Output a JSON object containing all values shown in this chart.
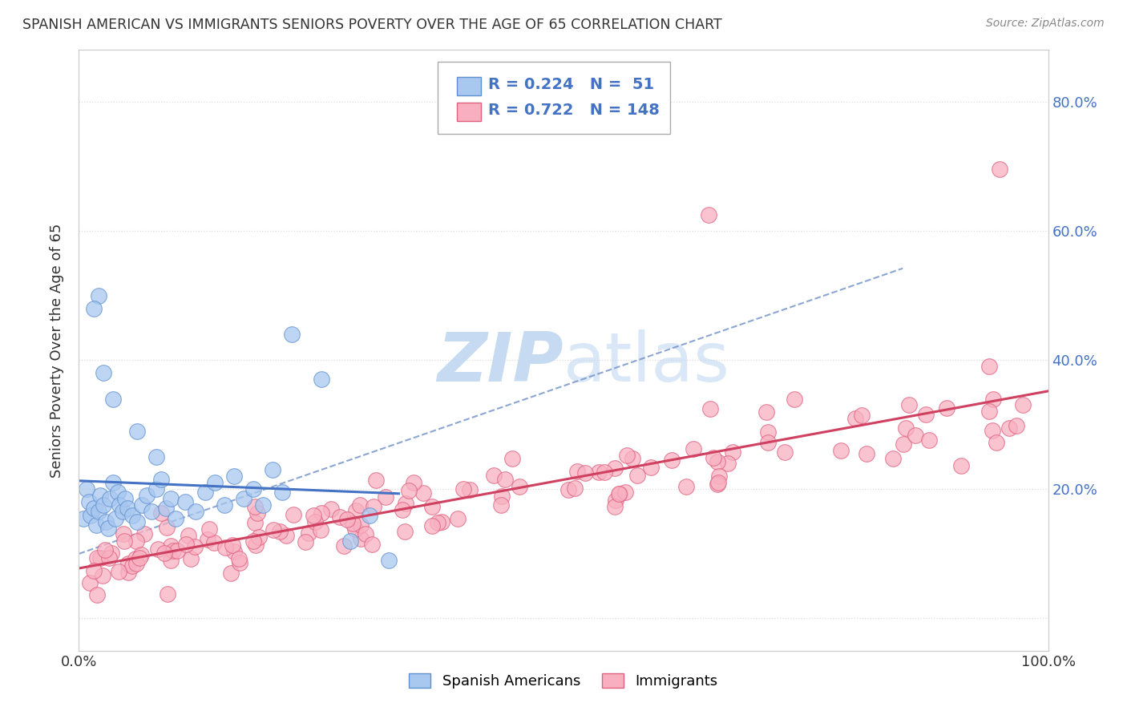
{
  "title": "SPANISH AMERICAN VS IMMIGRANTS SENIORS POVERTY OVER THE AGE OF 65 CORRELATION CHART",
  "source": "Source: ZipAtlas.com",
  "ylabel": "Seniors Poverty Over the Age of 65",
  "xlim": [
    0.0,
    1.0
  ],
  "ylim": [
    -0.05,
    0.88
  ],
  "xticks": [
    0.0,
    0.1,
    0.2,
    0.3,
    0.4,
    0.5,
    0.6,
    0.7,
    0.8,
    0.9,
    1.0
  ],
  "xticklabels": [
    "0.0%",
    "",
    "",
    "",
    "",
    "",
    "",
    "",
    "",
    "",
    "100.0%"
  ],
  "yticks": [
    0.0,
    0.2,
    0.4,
    0.6,
    0.8
  ],
  "yticklabels_right": [
    "",
    "20.0%",
    "40.0%",
    "60.0%",
    "80.0%"
  ],
  "blue_R": 0.224,
  "blue_N": 51,
  "pink_R": 0.722,
  "pink_N": 148,
  "legend_label_blue": "Spanish Americans",
  "legend_label_pink": "Immigrants",
  "blue_scatter_color": "#A8C8F0",
  "blue_scatter_edge": "#6090D0",
  "pink_scatter_color": "#F8B0C0",
  "pink_scatter_edge": "#E06080",
  "blue_line_color": "#4472C4",
  "pink_line_color": "#D04060",
  "dashed_line_color": "#7090C8",
  "watermark_color": "#C0D8F0",
  "background_color": "#FFFFFF",
  "grid_color": "#DDDDDD",
  "right_axis_color": "#4472C4",
  "title_color": "#333333",
  "source_color": "#888888"
}
